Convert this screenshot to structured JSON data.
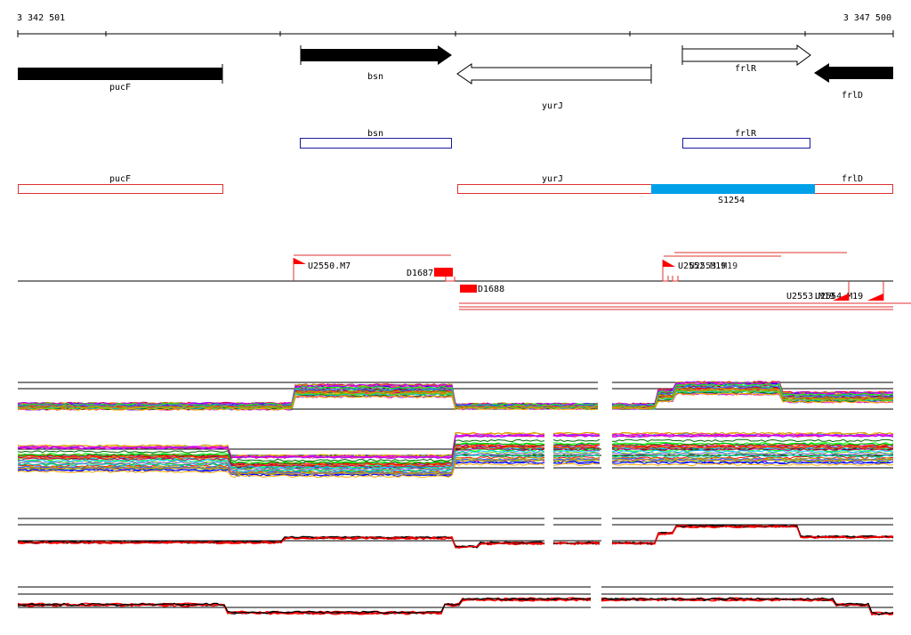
{
  "ruler": {
    "start_label": "3 342 501",
    "end_label": "3 347 500"
  },
  "genes": [
    {
      "name": "pucF",
      "strand": "+"
    },
    {
      "name": "bsn",
      "strand": "+"
    },
    {
      "name": "yurJ",
      "strand": "-"
    },
    {
      "name": "frlR",
      "strand": "+"
    },
    {
      "name": "frlD",
      "strand": "-"
    }
  ],
  "sense_transcripts": [
    {
      "label": "bsn"
    },
    {
      "label": "frlR"
    }
  ],
  "antisense_transcripts": [
    {
      "label": "pucF"
    },
    {
      "label": "yurJ"
    },
    {
      "label": "frlD"
    },
    {
      "label": "S1254",
      "color": "#00a0e8"
    }
  ],
  "upshifts": [
    {
      "label": "U2550.M7"
    },
    {
      "label": "D1687"
    },
    {
      "label": "D1688"
    },
    {
      "label": "U2552.M19"
    },
    {
      "label": "U2553.M19"
    },
    {
      "label": "U2554.M19"
    }
  ],
  "colors": {
    "gene_fill": "#000000",
    "sense_box": "#1a1aa0",
    "antisense_box": "#e03030",
    "accent": "#ff0000",
    "s1254": "#00a0e8"
  }
}
